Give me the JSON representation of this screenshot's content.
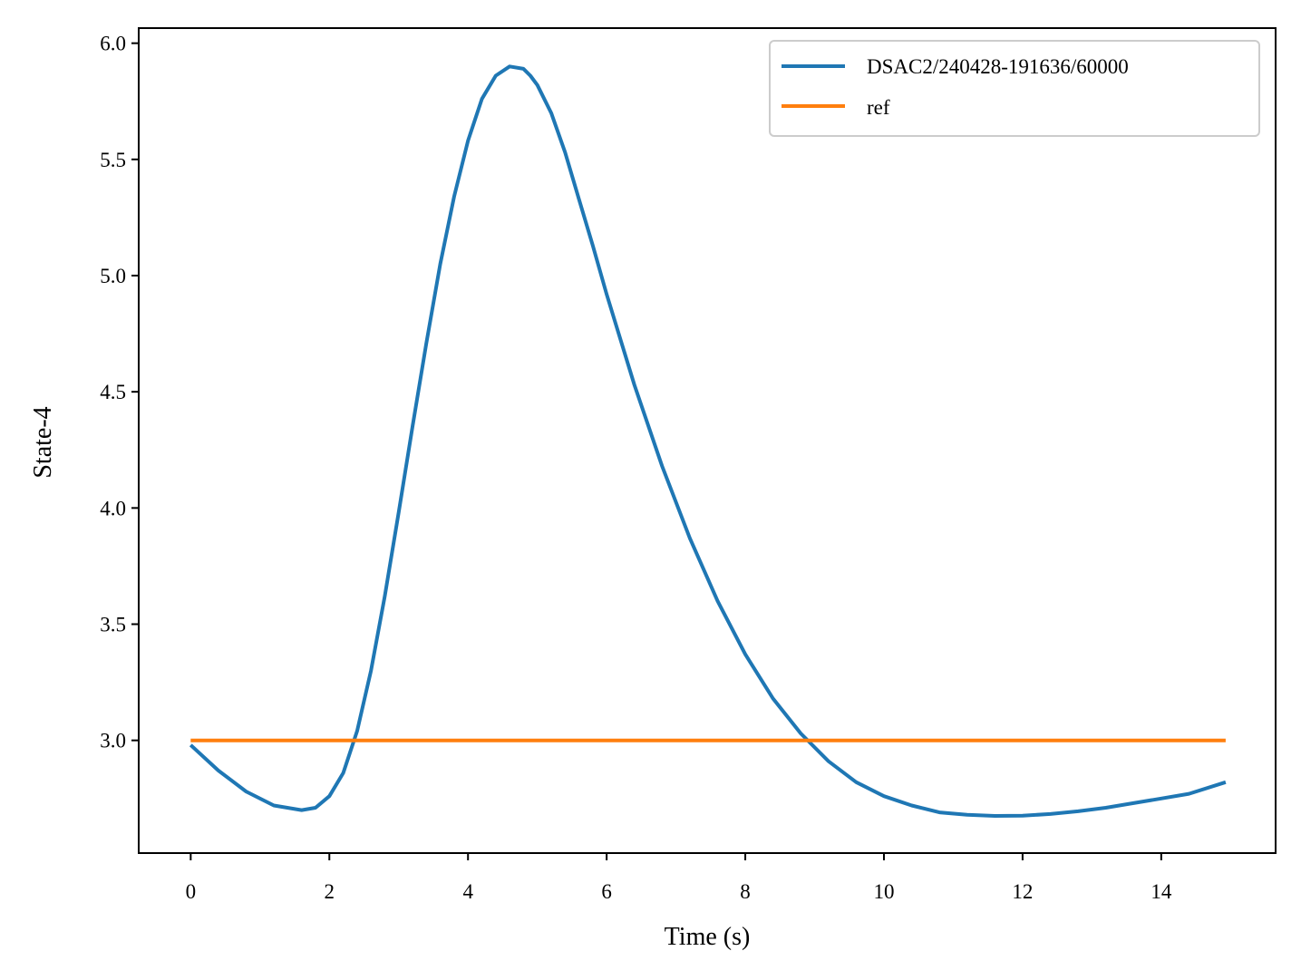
{
  "chart_data": {
    "type": "line",
    "title": "",
    "xlabel": "Time (s)",
    "ylabel": "State-4",
    "xlim": [
      -0.75,
      15.65
    ],
    "ylim": [
      2.515,
      6.065
    ],
    "xticks": [
      0,
      2,
      4,
      6,
      8,
      10,
      12,
      14
    ],
    "yticks": [
      3.0,
      3.5,
      4.0,
      4.5,
      5.0,
      5.5,
      6.0
    ],
    "ytick_labels": [
      "3.0",
      "3.5",
      "4.0",
      "4.5",
      "5.0",
      "5.5",
      "6.0"
    ],
    "grid": false,
    "legend_position": "top-right",
    "series": [
      {
        "name": "DSAC2/240428-191636/60000",
        "color": "#1f77b4",
        "x": [
          0.0,
          0.4,
          0.8,
          1.2,
          1.6,
          1.8,
          2.0,
          2.2,
          2.4,
          2.6,
          2.8,
          3.0,
          3.2,
          3.4,
          3.6,
          3.8,
          4.0,
          4.2,
          4.4,
          4.6,
          4.8,
          4.9,
          5.0,
          5.2,
          5.4,
          5.6,
          5.8,
          6.0,
          6.4,
          6.8,
          7.2,
          7.6,
          8.0,
          8.4,
          8.8,
          9.2,
          9.6,
          10.0,
          10.4,
          10.8,
          11.2,
          11.6,
          12.0,
          12.4,
          12.8,
          13.2,
          13.6,
          14.0,
          14.4,
          14.93
        ],
        "y": [
          2.98,
          2.87,
          2.78,
          2.72,
          2.7,
          2.71,
          2.76,
          2.86,
          3.04,
          3.3,
          3.62,
          3.98,
          4.35,
          4.71,
          5.05,
          5.34,
          5.58,
          5.76,
          5.86,
          5.9,
          5.89,
          5.86,
          5.82,
          5.7,
          5.53,
          5.33,
          5.13,
          4.92,
          4.53,
          4.18,
          3.87,
          3.6,
          3.37,
          3.18,
          3.03,
          2.91,
          2.82,
          2.76,
          2.72,
          2.69,
          2.68,
          2.675,
          2.676,
          2.683,
          2.695,
          2.71,
          2.73,
          2.75,
          2.77,
          2.82
        ]
      },
      {
        "name": "ref",
        "color": "#ff7f0e",
        "x": [
          0.0,
          14.93
        ],
        "y": [
          3.0,
          3.0
        ]
      }
    ]
  }
}
